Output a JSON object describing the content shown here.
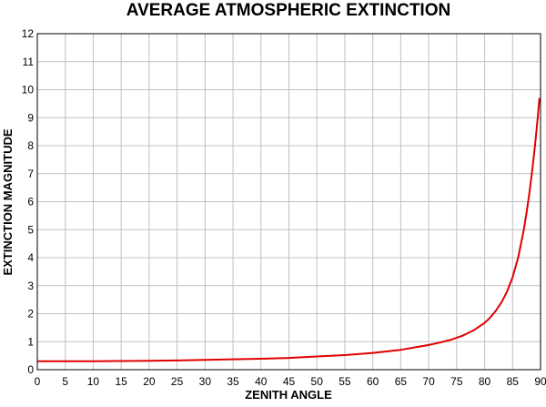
{
  "chart_data": {
    "type": "line",
    "title": "AVERAGE ATMOSPHERIC EXTINCTION",
    "xlabel": "ZENITH ANGLE",
    "ylabel": "EXTINCTION MAGNITUDE",
    "xlim": [
      0,
      90
    ],
    "ylim": [
      0,
      12
    ],
    "x_ticks": [
      0,
      5,
      10,
      15,
      20,
      25,
      30,
      35,
      40,
      45,
      50,
      55,
      60,
      65,
      70,
      75,
      80,
      85,
      90
    ],
    "y_ticks": [
      0,
      1,
      2,
      3,
      4,
      5,
      6,
      7,
      8,
      9,
      10,
      11,
      12
    ],
    "grid": true,
    "series": [
      {
        "color": "#e00000",
        "x": [
          0,
          5,
          10,
          15,
          20,
          25,
          30,
          35,
          40,
          45,
          50,
          55,
          60,
          65,
          70,
          72,
          74,
          76,
          78,
          80,
          81,
          82,
          83,
          84,
          85,
          86,
          87,
          87.5,
          88,
          88.5,
          89,
          89.5,
          89.8
        ],
        "y": [
          0.3,
          0.3,
          0.3,
          0.31,
          0.32,
          0.33,
          0.35,
          0.37,
          0.39,
          0.42,
          0.47,
          0.52,
          0.6,
          0.71,
          0.88,
          0.97,
          1.07,
          1.21,
          1.4,
          1.67,
          1.86,
          2.1,
          2.4,
          2.78,
          3.3,
          4.0,
          5.0,
          5.6,
          6.3,
          7.1,
          8.0,
          9.0,
          9.7
        ]
      }
    ]
  }
}
